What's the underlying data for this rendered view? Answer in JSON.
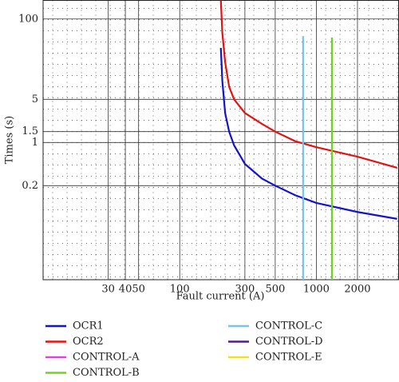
{
  "chart_data": {
    "type": "line",
    "log_x": true,
    "log_y": true,
    "grid": true,
    "xlabel": "Fault current (A)",
    "ylabel": "Times (s)",
    "xlim": [
      10,
      4000
    ],
    "ylim": [
      0.006,
      200
    ],
    "xticks": [
      30,
      40,
      50,
      100,
      300,
      500,
      1000,
      2000
    ],
    "yticks": [
      100,
      5,
      1.5,
      1,
      0.2
    ],
    "series": [
      {
        "name": "OCR1",
        "color": "#1414c8",
        "x": [
          200,
          205,
          215,
          230,
          250,
          300,
          400,
          500,
          700,
          1000,
          2000,
          3900
        ],
        "values": [
          34,
          10,
          3,
          1.5,
          0.9,
          0.45,
          0.26,
          0.2,
          0.14,
          0.105,
          0.075,
          0.058
        ]
      },
      {
        "name": "OCR2",
        "color": "#e01414",
        "x": [
          200,
          205,
          215,
          230,
          250,
          300,
          400,
          500,
          700,
          1000,
          2000,
          3900
        ],
        "values": [
          200,
          60,
          20,
          8,
          5,
          3,
          2,
          1.5,
          1.05,
          0.84,
          0.59,
          0.39
        ]
      },
      {
        "name": "CONTROL-A",
        "color": "#e040e0",
        "x": [],
        "values": []
      },
      {
        "name": "CONTROL-B",
        "color": "#6ed420",
        "x": [
          1300,
          1300
        ],
        "values": [
          50,
          0.006
        ]
      },
      {
        "name": "CONTROL-C",
        "color": "#78c4e4",
        "x": [
          800,
          800
        ],
        "values": [
          53,
          0.006
        ]
      },
      {
        "name": "CONTROL-D",
        "color": "#502080",
        "x": [],
        "values": []
      },
      {
        "name": "CONTROL-E",
        "color": "#f0e020",
        "x": [],
        "values": []
      }
    ]
  }
}
